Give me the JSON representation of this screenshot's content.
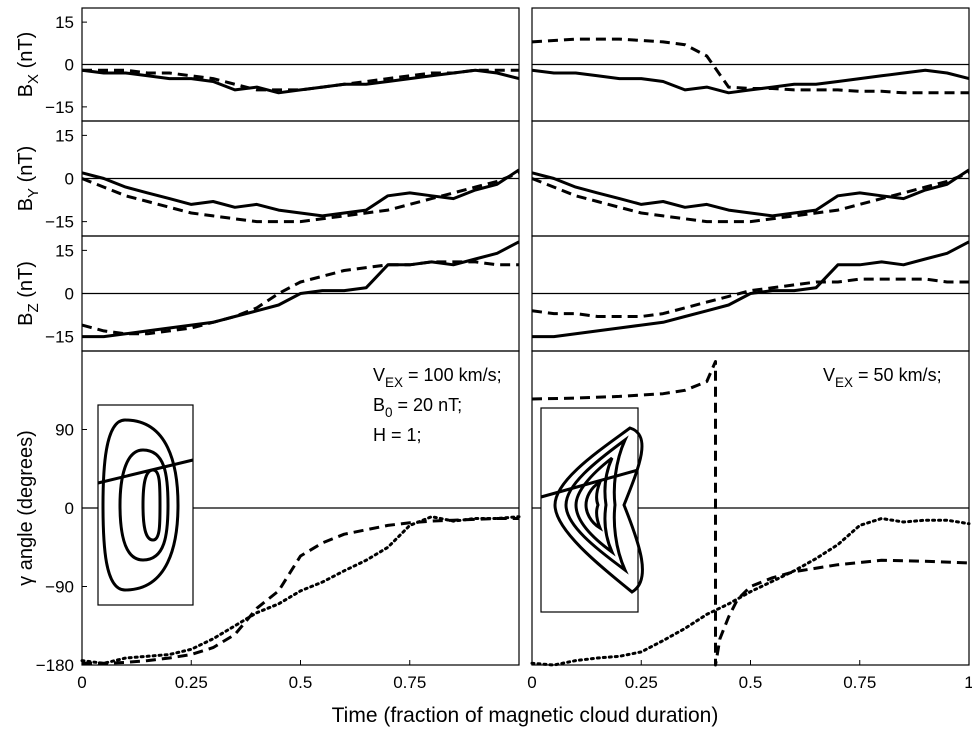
{
  "figure": {
    "xlabel": "Time (fraction of magnetic cloud duration)"
  },
  "chart_data": [
    {
      "type": "line",
      "zero_line": true,
      "ylim": [
        -20,
        20
      ],
      "yticks": [
        15,
        0,
        {
          "value": -15,
          "label": "−15"
        }
      ],
      "ylabel": [
        {
          "t": "B"
        },
        {
          "sub": "X"
        },
        {
          "t": " (nT)"
        }
      ],
      "xlim": [
        0,
        1
      ],
      "x": [
        0,
        0.05,
        0.1,
        0.15,
        0.2,
        0.25,
        0.3,
        0.35,
        0.4,
        0.45,
        0.5,
        0.55,
        0.6,
        0.65,
        0.7,
        0.75,
        0.8,
        0.85,
        0.9,
        0.95,
        1
      ],
      "series": [
        {
          "style": "solid",
          "color": "#000000",
          "values": [
            -2,
            -3,
            -3,
            -4,
            -5,
            -5,
            -6,
            -9,
            -8,
            -10,
            -9,
            -8,
            -7,
            -7,
            -6,
            -5,
            -4,
            -3,
            -2,
            -3,
            -5
          ]
        },
        {
          "style": "dashed",
          "color": "#000000",
          "values": [
            -2,
            -2,
            -2,
            -3,
            -3,
            -4,
            -5,
            -7,
            -9,
            -9,
            -9,
            -8,
            -7,
            -6,
            -5,
            -4,
            -3,
            -3,
            -2,
            -2,
            -2
          ]
        }
      ]
    },
    {
      "type": "line",
      "zero_line": true,
      "ylim": [
        -20,
        20
      ],
      "xlim": [
        0,
        1
      ],
      "x": [
        0,
        0.05,
        0.1,
        0.15,
        0.2,
        0.25,
        0.3,
        0.35,
        0.4,
        0.45,
        0.5,
        0.55,
        0.6,
        0.65,
        0.7,
        0.75,
        0.8,
        0.85,
        0.9,
        0.95,
        1
      ],
      "series": [
        {
          "style": "solid",
          "color": "#000000",
          "values": [
            -2,
            -3,
            -3,
            -4,
            -5,
            -5,
            -6,
            -9,
            -8,
            -10,
            -9,
            -8,
            -7,
            -7,
            -6,
            -5,
            -4,
            -3,
            -2,
            -3,
            -5
          ]
        },
        {
          "style": "dashed",
          "color": "#000000",
          "values": [
            8,
            8.5,
            9,
            9,
            9,
            8.5,
            8,
            7,
            3,
            -8,
            -8.5,
            -8.5,
            -9,
            -9,
            -9,
            -9.5,
            -9.5,
            -10,
            -10,
            -10,
            -10
          ]
        }
      ]
    },
    {
      "type": "line",
      "zero_line": true,
      "ylim": [
        -20,
        20
      ],
      "yticks": [
        15,
        0,
        {
          "value": -15,
          "label": "−15"
        }
      ],
      "ylabel": [
        {
          "t": "B"
        },
        {
          "sub": "Y"
        },
        {
          "t": " (nT)"
        }
      ],
      "xlim": [
        0,
        1
      ],
      "x": [
        0,
        0.05,
        0.1,
        0.15,
        0.2,
        0.25,
        0.3,
        0.35,
        0.4,
        0.45,
        0.5,
        0.55,
        0.6,
        0.65,
        0.7,
        0.75,
        0.8,
        0.85,
        0.9,
        0.95,
        1
      ],
      "series": [
        {
          "style": "solid",
          "color": "#000000",
          "values": [
            2,
            0,
            -3,
            -5,
            -7,
            -9,
            -8,
            -10,
            -9,
            -11,
            -12,
            -13,
            -12,
            -11,
            -6,
            -5,
            -6,
            -7,
            -4,
            -2,
            3
          ]
        },
        {
          "style": "dashed",
          "color": "#000000",
          "values": [
            0,
            -3,
            -6,
            -8,
            -10,
            -12,
            -13,
            -14,
            -15,
            -15,
            -15,
            -14,
            -13,
            -12,
            -11,
            -9,
            -7,
            -5,
            -3,
            -1,
            2
          ]
        }
      ]
    },
    {
      "type": "line",
      "zero_line": true,
      "ylim": [
        -20,
        20
      ],
      "xlim": [
        0,
        1
      ],
      "x": [
        0,
        0.05,
        0.1,
        0.15,
        0.2,
        0.25,
        0.3,
        0.35,
        0.4,
        0.45,
        0.5,
        0.55,
        0.6,
        0.65,
        0.7,
        0.75,
        0.8,
        0.85,
        0.9,
        0.95,
        1
      ],
      "series": [
        {
          "style": "solid",
          "color": "#000000",
          "values": [
            2,
            0,
            -3,
            -5,
            -7,
            -9,
            -8,
            -10,
            -9,
            -11,
            -12,
            -13,
            -12,
            -11,
            -6,
            -5,
            -6,
            -7,
            -4,
            -2,
            3
          ]
        },
        {
          "style": "dashed",
          "color": "#000000",
          "values": [
            0,
            -3,
            -6,
            -8,
            -10,
            -12,
            -13,
            -14,
            -15,
            -15,
            -15,
            -14,
            -13,
            -12,
            -11,
            -9,
            -7,
            -5,
            -3,
            -1,
            2
          ]
        }
      ]
    },
    {
      "type": "line",
      "zero_line": true,
      "ylim": [
        -20,
        20
      ],
      "yticks": [
        15,
        0,
        {
          "value": -15,
          "label": "−15"
        }
      ],
      "ylabel": [
        {
          "t": "B"
        },
        {
          "sub": "Z"
        },
        {
          "t": " (nT)"
        }
      ],
      "xlim": [
        0,
        1
      ],
      "x": [
        0,
        0.05,
        0.1,
        0.15,
        0.2,
        0.25,
        0.3,
        0.35,
        0.4,
        0.45,
        0.5,
        0.55,
        0.6,
        0.65,
        0.7,
        0.75,
        0.8,
        0.85,
        0.9,
        0.95,
        1
      ],
      "series": [
        {
          "style": "solid",
          "color": "#000000",
          "values": [
            -15,
            -15,
            -14,
            -13,
            -12,
            -11,
            -10,
            -8,
            -6,
            -4,
            0,
            1,
            1,
            2,
            10,
            10,
            11,
            10,
            12,
            14,
            18
          ]
        },
        {
          "style": "dashed",
          "color": "#000000",
          "values": [
            -11,
            -13,
            -14,
            -14,
            -13,
            -12,
            -10,
            -8,
            -5,
            0,
            4,
            6,
            8,
            9,
            10,
            10,
            11,
            11,
            11,
            10,
            10
          ]
        }
      ]
    },
    {
      "type": "line",
      "zero_line": true,
      "ylim": [
        -20,
        20
      ],
      "xlim": [
        0,
        1
      ],
      "x": [
        0,
        0.05,
        0.1,
        0.15,
        0.2,
        0.25,
        0.3,
        0.35,
        0.4,
        0.45,
        0.5,
        0.55,
        0.6,
        0.65,
        0.7,
        0.75,
        0.8,
        0.85,
        0.9,
        0.95,
        1
      ],
      "series": [
        {
          "style": "solid",
          "color": "#000000",
          "values": [
            -15,
            -15,
            -14,
            -13,
            -12,
            -11,
            -10,
            -8,
            -6,
            -4,
            0,
            1,
            1,
            2,
            10,
            10,
            11,
            10,
            12,
            14,
            18
          ]
        },
        {
          "style": "dashed",
          "color": "#000000",
          "values": [
            -6,
            -7,
            -7,
            -8,
            -8,
            -8,
            -7,
            -5,
            -3,
            -1,
            1,
            2,
            3,
            4,
            4,
            5,
            5,
            5,
            5,
            4,
            4
          ]
        }
      ]
    },
    {
      "type": "line",
      "zero_line": true,
      "ylim": [
        -180,
        180
      ],
      "yticks": [
        90,
        0,
        {
          "value": -90,
          "label": "−90"
        },
        {
          "value": -180,
          "label": "−180"
        }
      ],
      "ylabel": [
        {
          "t": "γ angle (degrees)"
        }
      ],
      "xlim": [
        0,
        1
      ],
      "xticks": [
        0,
        0.25,
        0.5,
        0.75
      ],
      "x": [
        0,
        0.05,
        0.1,
        0.15,
        0.2,
        0.25,
        0.3,
        0.35,
        0.4,
        0.45,
        0.5,
        0.55,
        0.6,
        0.65,
        0.7,
        0.75,
        0.8,
        0.85,
        0.9,
        0.95,
        1
      ],
      "annotations": [
        [
          {
            "t": "V"
          },
          {
            "sub": "EX"
          },
          {
            "t": " = 100 km/s;"
          }
        ],
        [
          {
            "t": "B"
          },
          {
            "sub": "0"
          },
          {
            "t": " = 20 nT;"
          }
        ],
        [
          {
            "t": "H = 1;"
          }
        ]
      ],
      "series": [
        {
          "style": "dotted",
          "color": "#000000",
          "values": [
            -175,
            -178,
            -172,
            -170,
            -168,
            -162,
            -150,
            -135,
            -120,
            -110,
            -95,
            -85,
            -72,
            -60,
            -45,
            -20,
            -10,
            -15,
            -12,
            -12,
            -10
          ]
        },
        {
          "style": "dashed",
          "color": "#000000",
          "values": [
            -178,
            -178,
            -177,
            -175,
            -172,
            -168,
            -160,
            -145,
            -115,
            -95,
            -55,
            -40,
            -30,
            -25,
            -20,
            -17,
            -15,
            -14,
            -13,
            -12,
            -12
          ]
        }
      ]
    },
    {
      "type": "line",
      "zero_line": true,
      "ylim": [
        -180,
        180
      ],
      "xlim": [
        0,
        1
      ],
      "xticks": [
        0,
        0.25,
        0.5,
        0.75,
        1
      ],
      "x": [
        0,
        0.05,
        0.1,
        0.15,
        0.2,
        0.25,
        0.3,
        0.35,
        0.4,
        0.45,
        0.5,
        0.55,
        0.6,
        0.65,
        0.7,
        0.75,
        0.8,
        0.85,
        0.9,
        0.95,
        1
      ],
      "annotations": [
        [
          {
            "t": "V"
          },
          {
            "sub": "EX"
          },
          {
            "t": " = 50 km/s;"
          }
        ]
      ],
      "series": [
        {
          "style": "dotted",
          "color": "#000000",
          "values": [
            -178,
            -180,
            -175,
            -172,
            -170,
            -165,
            -152,
            -138,
            -122,
            -110,
            -96,
            -84,
            -72,
            -58,
            -42,
            -20,
            -12,
            -16,
            -14,
            -14,
            -18
          ]
        },
        {
          "style": "dashed",
          "color": "#000000",
          "x": [
            0,
            0.1,
            0.2,
            0.3,
            0.35,
            0.4,
            0.42,
            0.42,
            0.43,
            0.45,
            0.47,
            0.5,
            0.55,
            0.6,
            0.7,
            0.8,
            0.9,
            1
          ],
          "values": [
            125,
            126,
            128,
            131,
            135,
            145,
            168,
            -180,
            -150,
            -125,
            -105,
            -90,
            -80,
            -73,
            -65,
            -60,
            -61,
            -63
          ]
        }
      ]
    }
  ]
}
